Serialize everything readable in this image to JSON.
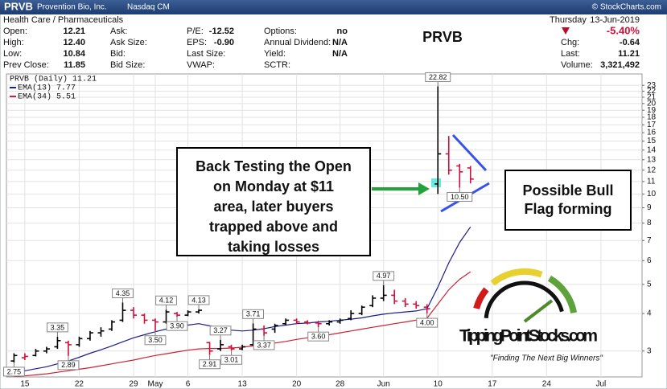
{
  "header": {
    "symbol": "PRVB",
    "company": "Provention Bio, Inc.",
    "exchange": "Nasdaq CM",
    "copyright": "© StockCharts.com",
    "sector": "Health Care / Pharmaceuticals",
    "weekday": "Thursday",
    "date": "13-Jun-2019",
    "title": "PRVB",
    "change_pct": "-5.40%",
    "columns": [
      [
        [
          "Open:",
          "12.21"
        ],
        [
          "High:",
          "12.40"
        ],
        [
          "Low:",
          "10.84"
        ],
        [
          "Prev Close:",
          "11.85"
        ]
      ],
      [
        [
          "Ask:"
        ],
        [
          "Ask Size:"
        ],
        [
          "Bid:"
        ],
        [
          "Bid Size:"
        ]
      ],
      [
        [
          "P/E:",
          "-12.52"
        ],
        [
          "EPS:",
          "-0.90"
        ],
        [
          "Last Size:"
        ],
        [
          "VWAP:"
        ]
      ],
      [
        [
          "Options:",
          "no"
        ],
        [
          "Annual Dividend:",
          "N/A"
        ],
        [
          "Yield:",
          "N/A"
        ],
        [
          "SCTR:"
        ]
      ]
    ],
    "right": [
      [
        "Chg:",
        "-0.64"
      ],
      [
        "Last:",
        "11.21"
      ],
      [
        "Volume:",
        "3,321,492"
      ]
    ]
  },
  "chart_data": {
    "type": "ohlc",
    "name": "PRVB (Daily)",
    "categories": [
      null,
      "15",
      null,
      null,
      null,
      null,
      "22",
      null,
      null,
      null,
      null,
      "29",
      null,
      "May",
      null,
      null,
      "6",
      null,
      null,
      null,
      null,
      "13",
      null,
      null,
      null,
      null,
      "20",
      null,
      null,
      null,
      "28",
      null,
      null,
      null,
      "Jun",
      null,
      null,
      null,
      null,
      "10",
      null,
      null,
      null,
      null,
      "17",
      null,
      null,
      null,
      null,
      "24",
      null,
      null,
      null,
      null,
      "Jul",
      null,
      null,
      null
    ],
    "open": [
      2.78,
      2.85,
      2.9,
      3.0,
      3.1,
      3.2,
      3.15,
      3.3,
      3.45,
      3.55,
      3.8,
      4.1,
      3.95,
      3.8,
      3.75,
      4.0,
      3.95,
      4.05,
      3.2,
      3.05,
      3.1,
      3.05,
      3.15,
      3.55,
      3.55,
      3.7,
      3.8,
      3.75,
      3.72,
      3.7,
      3.75,
      3.85,
      4.0,
      4.25,
      4.5,
      4.6,
      4.4,
      4.3,
      4.2,
      10.8,
      13.6,
      12.4,
      12.21,
      null,
      null,
      null,
      null,
      null,
      null,
      null,
      null,
      null,
      null,
      null,
      null,
      null,
      null,
      null
    ],
    "high": [
      2.95,
      2.95,
      3.05,
      3.1,
      3.35,
      3.25,
      3.35,
      3.5,
      3.6,
      3.8,
      4.35,
      4.2,
      4.0,
      3.85,
      4.12,
      4.05,
      4.1,
      4.13,
      3.22,
      3.27,
      3.15,
      3.15,
      3.71,
      3.65,
      3.7,
      3.85,
      3.85,
      3.8,
      3.78,
      3.8,
      3.85,
      4.1,
      4.25,
      4.6,
      4.97,
      4.8,
      4.5,
      4.4,
      4.3,
      22.82,
      15.6,
      12.6,
      12.4,
      null,
      null,
      null,
      null,
      null,
      null,
      null,
      null,
      null,
      null,
      null,
      null,
      null,
      null,
      null
    ],
    "low": [
      2.75,
      2.8,
      2.88,
      2.95,
      3.05,
      2.89,
      3.1,
      3.25,
      3.35,
      3.5,
      3.75,
      3.85,
      3.7,
      3.5,
      3.7,
      3.9,
      3.92,
      4.0,
      2.91,
      3.0,
      3.01,
      3.02,
      3.12,
      3.37,
      3.45,
      3.65,
      3.7,
      3.68,
      3.6,
      3.65,
      3.7,
      3.8,
      3.95,
      4.2,
      4.4,
      4.3,
      4.2,
      4.15,
      4.0,
      10.0,
      11.6,
      10.5,
      10.84,
      null,
      null,
      null,
      null,
      null,
      null,
      null,
      null,
      null,
      null,
      null,
      null,
      null,
      null,
      null
    ],
    "close": [
      2.9,
      2.88,
      3.0,
      3.05,
      3.25,
      3.15,
      3.3,
      3.45,
      3.5,
      3.75,
      4.1,
      3.95,
      3.8,
      3.75,
      4.05,
      3.95,
      4.05,
      4.1,
      3.0,
      3.15,
      3.05,
      3.1,
      3.55,
      3.45,
      3.65,
      3.8,
      3.75,
      3.72,
      3.7,
      3.75,
      3.8,
      4.0,
      4.2,
      4.5,
      4.6,
      4.4,
      4.3,
      4.25,
      4.15,
      13.6,
      12.0,
      11.85,
      11.21,
      null,
      null,
      null,
      null,
      null,
      null,
      null,
      null,
      null,
      null,
      null,
      null,
      null,
      null,
      null
    ],
    "high_labels": [
      null,
      null,
      null,
      null,
      "3.35",
      null,
      null,
      null,
      null,
      null,
      "4.35",
      null,
      null,
      null,
      "4.12",
      null,
      null,
      "4.13",
      null,
      "3.27",
      null,
      null,
      "3.71",
      null,
      null,
      null,
      null,
      null,
      null,
      null,
      null,
      null,
      null,
      null,
      "4.97",
      null,
      null,
      null,
      null,
      "22.82",
      null,
      null,
      null,
      null,
      null,
      null,
      null,
      null,
      null,
      null,
      null,
      null,
      null,
      null,
      null,
      null,
      null,
      null
    ],
    "low_labels": [
      "2.75",
      null,
      null,
      null,
      null,
      "2.89",
      null,
      null,
      null,
      null,
      null,
      null,
      null,
      "3.50",
      null,
      "3.90",
      null,
      null,
      "2.91",
      null,
      "3.01",
      null,
      null,
      "3.37",
      null,
      null,
      null,
      null,
      "3.60",
      null,
      null,
      null,
      null,
      null,
      null,
      null,
      null,
      null,
      "4.00",
      null,
      null,
      "10.50",
      null,
      null,
      null,
      null,
      null,
      null,
      null,
      null,
      null,
      null,
      null,
      null,
      null,
      null,
      null,
      null
    ],
    "up_color": "#000000",
    "down_color": "#d0103a",
    "series": [
      {
        "name": "EMA(13)",
        "color": "#1c1c8c",
        "values": [
          2.55,
          2.58,
          2.62,
          2.66,
          2.72,
          2.78,
          2.86,
          2.95,
          3.03,
          3.12,
          3.22,
          3.32,
          3.4,
          3.48,
          3.55,
          3.6,
          3.66,
          3.7,
          3.64,
          3.58,
          3.52,
          3.5,
          3.52,
          3.56,
          3.62,
          3.66,
          3.7,
          3.72,
          3.75,
          3.77,
          3.8,
          3.83,
          3.87,
          3.93,
          3.98,
          4.02,
          4.05,
          4.08,
          4.15,
          4.9,
          5.9,
          6.9,
          7.77,
          null,
          null,
          null,
          null,
          null,
          null,
          null,
          null,
          null,
          null,
          null,
          null,
          null,
          null,
          null
        ]
      },
      {
        "name": "EMA(34)",
        "color": "#cc2233",
        "values": [
          2.46,
          2.48,
          2.5,
          2.52,
          2.55,
          2.58,
          2.61,
          2.64,
          2.68,
          2.72,
          2.76,
          2.8,
          2.85,
          2.9,
          2.94,
          2.98,
          3.02,
          3.05,
          3.06,
          3.06,
          3.07,
          3.09,
          3.12,
          3.15,
          3.19,
          3.23,
          3.28,
          3.32,
          3.36,
          3.4,
          3.45,
          3.5,
          3.55,
          3.6,
          3.65,
          3.7,
          3.75,
          3.8,
          3.86,
          4.3,
          4.8,
          5.2,
          5.51,
          null,
          null,
          null,
          null,
          null,
          null,
          null,
          null,
          null,
          null,
          null,
          null,
          null,
          null,
          null
        ]
      }
    ],
    "ylim": [
      2.46,
      25.1
    ],
    "yticks": [
      3,
      4,
      5,
      6,
      7,
      8,
      9,
      10,
      11,
      12,
      13,
      14,
      15,
      16,
      17,
      18,
      19,
      20,
      21,
      22,
      23
    ],
    "log_scale": true,
    "grid": true,
    "annotations": [
      {
        "lines": [
          "Back Testing the Open",
          "on Monday at $11",
          "area, later buyers",
          "trapped above and",
          "taking losses"
        ]
      },
      {
        "lines": [
          "Possible Bull",
          "Flag forming"
        ]
      }
    ]
  },
  "logo": {
    "text": "TippingPointStocks.com",
    "tagline": "\"Finding The Next Big Winners\""
  }
}
